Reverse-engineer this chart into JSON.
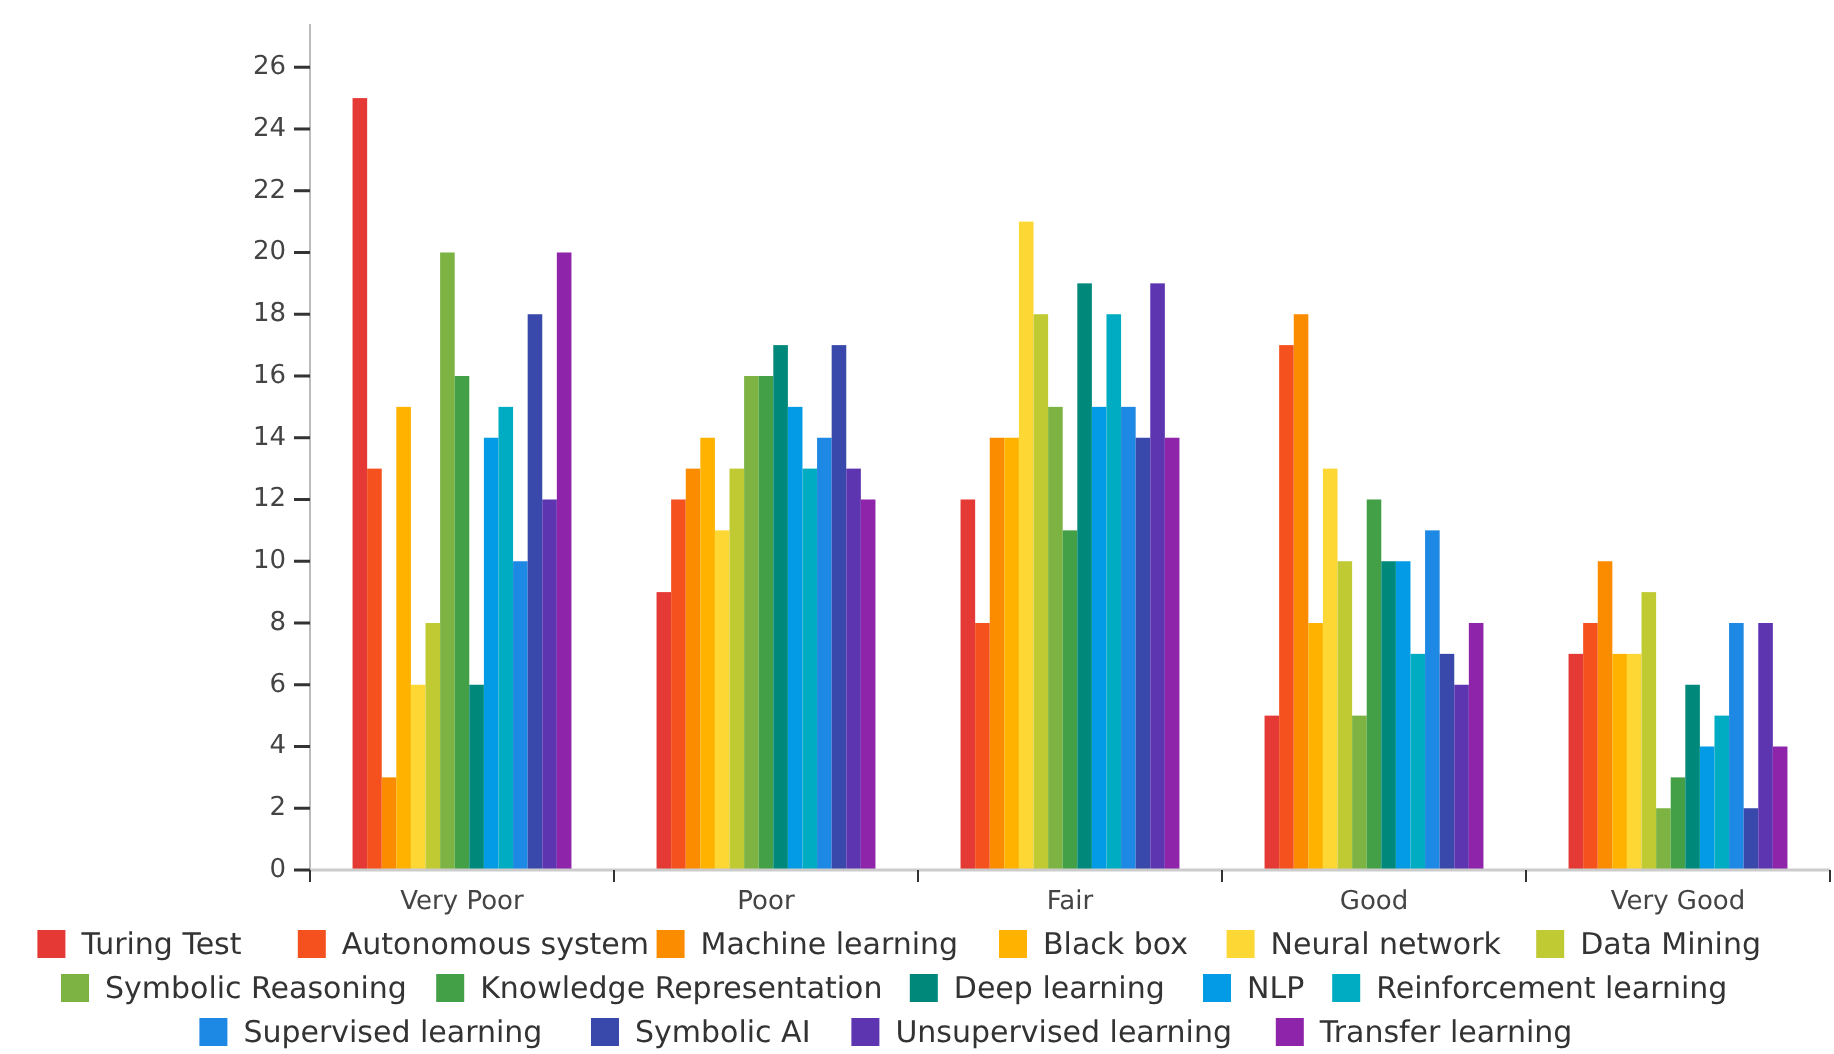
{
  "chart_data": {
    "type": "bar",
    "categories": [
      "Very Poor",
      "Poor",
      "Fair",
      "Good",
      "Very Good"
    ],
    "ylim": [
      0,
      27.4
    ],
    "yticks": [
      0,
      2,
      4,
      6,
      8,
      10,
      12,
      14,
      16,
      18,
      20,
      22,
      24,
      26
    ],
    "grid": false,
    "legend": "bottom",
    "series": [
      {
        "name": "Turing Test",
        "color": "#e53935",
        "values": [
          25,
          9,
          12,
          5,
          7
        ]
      },
      {
        "name": "Autonomous system",
        "color": "#f4511e",
        "values": [
          13,
          12,
          8,
          17,
          8
        ]
      },
      {
        "name": "Machine learning",
        "color": "#fb8c00",
        "values": [
          3,
          13,
          14,
          18,
          10
        ]
      },
      {
        "name": "Black box",
        "color": "#ffb300",
        "values": [
          15,
          14,
          14,
          8,
          7
        ]
      },
      {
        "name": "Neural network",
        "color": "#fdd835",
        "values": [
          6,
          11,
          21,
          13,
          7
        ]
      },
      {
        "name": "Data Mining",
        "color": "#c0ca33",
        "values": [
          8,
          13,
          18,
          10,
          9
        ]
      },
      {
        "name": "Symbolic Reasoning",
        "color": "#7cb342",
        "values": [
          20,
          16,
          15,
          5,
          2
        ]
      },
      {
        "name": "Knowledge Representation",
        "color": "#43a047",
        "values": [
          16,
          16,
          11,
          12,
          3
        ]
      },
      {
        "name": "Deep learning",
        "color": "#00897b",
        "values": [
          6,
          17,
          19,
          10,
          6
        ]
      },
      {
        "name": "NLP",
        "color": "#039be5",
        "values": [
          14,
          15,
          15,
          10,
          4
        ]
      },
      {
        "name": "Reinforcement learning",
        "color": "#00acc1",
        "values": [
          15,
          13,
          18,
          7,
          5
        ]
      },
      {
        "name": "Supervised learning",
        "color": "#1e88e5",
        "values": [
          10,
          14,
          15,
          11,
          8
        ]
      },
      {
        "name": "Symbolic AI",
        "color": "#3949ab",
        "values": [
          18,
          17,
          14,
          7,
          2
        ]
      },
      {
        "name": "Unsupervised learning",
        "color": "#5e35b1",
        "values": [
          12,
          13,
          19,
          6,
          8
        ]
      },
      {
        "name": "Transfer learning",
        "color": "#8e24aa",
        "values": [
          20,
          12,
          14,
          8,
          4
        ]
      }
    ]
  }
}
